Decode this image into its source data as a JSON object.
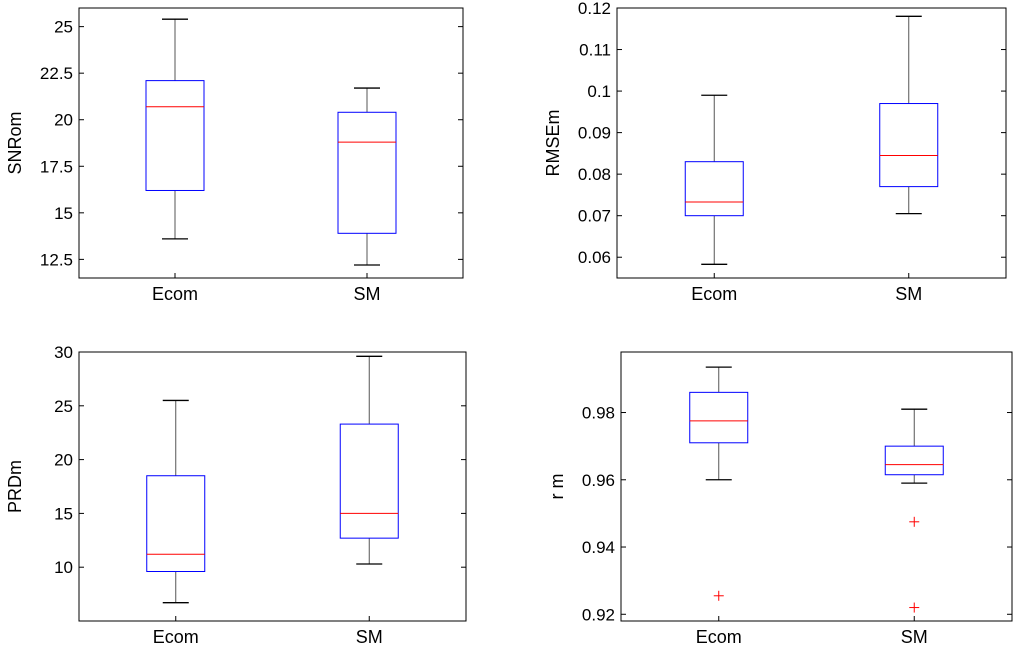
{
  "chart_data": [
    {
      "type": "box",
      "ylabel": "SNRom",
      "categories": [
        "Ecom",
        "SM"
      ],
      "ylim": [
        11.5,
        26
      ],
      "yticks": [
        12.5,
        15,
        17.5,
        20,
        22.5,
        25
      ],
      "ytick_labels": [
        "12.5",
        "15",
        "17.5",
        "20",
        "22.5",
        "25"
      ],
      "boxes": [
        {
          "category": "Ecom",
          "whisker_low": 13.6,
          "q1": 16.2,
          "median": 20.7,
          "q3": 22.1,
          "whisker_high": 25.4,
          "outliers": []
        },
        {
          "category": "SM",
          "whisker_low": 12.2,
          "q1": 13.9,
          "median": 18.8,
          "q3": 20.4,
          "whisker_high": 21.7,
          "outliers": []
        }
      ]
    },
    {
      "type": "box",
      "ylabel": "RMSEm",
      "categories": [
        "Ecom",
        "SM"
      ],
      "ylim": [
        0.055,
        0.12
      ],
      "yticks": [
        0.06,
        0.07,
        0.08,
        0.09,
        0.1,
        0.11,
        0.12
      ],
      "ytick_labels": [
        "0.06",
        "0.07",
        "0.08",
        "0.09",
        "0.1",
        "0.11",
        "0.12"
      ],
      "boxes": [
        {
          "category": "Ecom",
          "whisker_low": 0.0583,
          "q1": 0.07,
          "median": 0.0733,
          "q3": 0.083,
          "whisker_high": 0.099,
          "outliers": []
        },
        {
          "category": "SM",
          "whisker_low": 0.0705,
          "q1": 0.077,
          "median": 0.0845,
          "q3": 0.097,
          "whisker_high": 0.118,
          "outliers": []
        }
      ]
    },
    {
      "type": "box",
      "ylabel": "PRDm",
      "categories": [
        "Ecom",
        "SM"
      ],
      "ylim": [
        5,
        30
      ],
      "yticks": [
        10,
        15,
        20,
        25,
        30
      ],
      "ytick_labels": [
        "10",
        "15",
        "20",
        "25",
        "30"
      ],
      "boxes": [
        {
          "category": "Ecom",
          "whisker_low": 6.7,
          "q1": 9.6,
          "median": 11.2,
          "q3": 18.5,
          "whisker_high": 25.5,
          "outliers": []
        },
        {
          "category": "SM",
          "whisker_low": 10.3,
          "q1": 12.7,
          "median": 15.0,
          "q3": 23.3,
          "whisker_high": 29.6,
          "outliers": []
        }
      ]
    },
    {
      "type": "box",
      "ylabel": "r m",
      "categories": [
        "Ecom",
        "SM"
      ],
      "ylim": [
        0.918,
        0.998
      ],
      "yticks": [
        0.92,
        0.94,
        0.96,
        0.98
      ],
      "ytick_labels": [
        "0.92",
        "0.94",
        "0.96",
        "0.98"
      ],
      "boxes": [
        {
          "category": "Ecom",
          "whisker_low": 0.96,
          "q1": 0.971,
          "median": 0.9775,
          "q3": 0.986,
          "whisker_high": 0.9935,
          "outliers": [
            0.9255
          ]
        },
        {
          "category": "SM",
          "whisker_low": 0.959,
          "q1": 0.9615,
          "median": 0.9645,
          "q3": 0.97,
          "whisker_high": 0.981,
          "outliers": [
            0.9475,
            0.922
          ]
        }
      ]
    }
  ],
  "colors": {
    "box": "#0000ff",
    "median": "#ff0000",
    "whisker": "#000000",
    "outlier": "#ff0000",
    "frame": "#000000"
  }
}
